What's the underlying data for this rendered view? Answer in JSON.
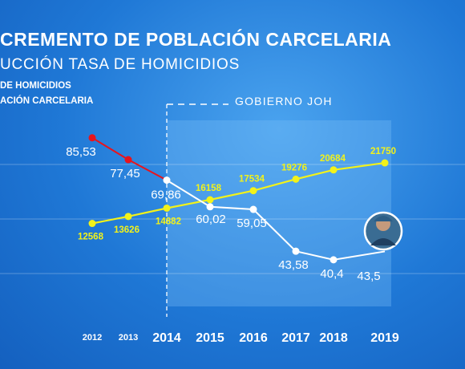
{
  "header": {
    "title": "CREMENTO DE POBLACIÓN CARCELARIA",
    "subtitle": "UCCIÓN TASA DE HOMICIDIOS"
  },
  "annotation": {
    "government_label": "GOBIERNO JOH"
  },
  "colors": {
    "homicide_before": "#e8141c",
    "homicide_after": "#ffffff",
    "prison": "#f2f21a"
  },
  "icons": [
    "police-officer-photo"
  ],
  "chart_data": {
    "type": "line",
    "title": "",
    "xlabel": "",
    "ylabel": "",
    "categories": [
      "2012",
      "2013",
      "2014",
      "2015",
      "2016",
      "2017",
      "2018",
      "2019"
    ],
    "legend": {
      "placement": "top-left",
      "entries": [
        "DE HOMICIDIOS",
        "ACIÓN CARCELARIA"
      ]
    },
    "series": [
      {
        "name": "DE HOMICIDIOS",
        "values": [
          85.53,
          77.45,
          69.86,
          60.02,
          59.05,
          43.58,
          40.4,
          43.5
        ],
        "labels": [
          "85,53",
          "77,45",
          "69,86",
          "60,02",
          "59,05",
          "43,58",
          "40,4",
          "43,5"
        ],
        "color_before_2014": "#e8141c",
        "color_after_2014": "#ffffff"
      },
      {
        "name": "ACIÓN CARCELARIA",
        "values": [
          12568,
          13626,
          14882,
          16158,
          17534,
          19276,
          20684,
          21750
        ],
        "labels": [
          "12568",
          "13626",
          "14882",
          "16158",
          "17534",
          "19276",
          "20684",
          "21750"
        ],
        "color": "#f2f21a"
      }
    ],
    "grid": true,
    "vertical_marker": {
      "at": "2014",
      "style": "dashed"
    }
  }
}
